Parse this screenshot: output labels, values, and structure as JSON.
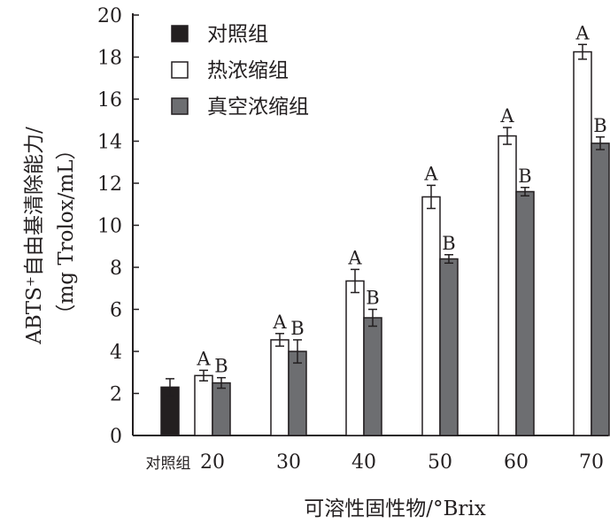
{
  "chart_data": {
    "type": "bar",
    "ylabel_line1": "ABTS⁺自由基清除能力/",
    "ylabel_line2": "（mg Trolox/mL）",
    "xlabel": "可溶性固性物/°Brix",
    "ylim": [
      0,
      20
    ],
    "yticks": [
      0,
      2,
      4,
      6,
      8,
      10,
      12,
      14,
      16,
      18,
      20
    ],
    "categories": [
      "对照组",
      "20",
      "30",
      "40",
      "50",
      "60",
      "70"
    ],
    "legend_position": "top-left",
    "series": [
      {
        "name": "对照组",
        "color": "#231f20",
        "values": [
          2.3,
          null,
          null,
          null,
          null,
          null,
          null
        ],
        "errors": [
          0.4,
          null,
          null,
          null,
          null,
          null,
          null
        ],
        "labels": [
          "",
          "",
          "",
          "",
          "",
          "",
          ""
        ]
      },
      {
        "name": "热浓缩组",
        "color": "#ffffff",
        "values": [
          null,
          2.85,
          4.55,
          7.35,
          11.35,
          14.25,
          18.25
        ],
        "errors": [
          null,
          0.25,
          0.3,
          0.55,
          0.55,
          0.4,
          0.35
        ],
        "labels": [
          "",
          "A",
          "A",
          "A",
          "A",
          "A",
          "A"
        ]
      },
      {
        "name": "真空浓缩组",
        "color": "#6d6e71",
        "values": [
          null,
          2.5,
          4.0,
          5.6,
          8.4,
          11.6,
          13.9
        ],
        "errors": [
          null,
          0.25,
          0.55,
          0.4,
          0.2,
          0.2,
          0.3
        ],
        "labels": [
          "",
          "B",
          "B",
          "B",
          "B",
          "B",
          "B"
        ]
      }
    ]
  }
}
